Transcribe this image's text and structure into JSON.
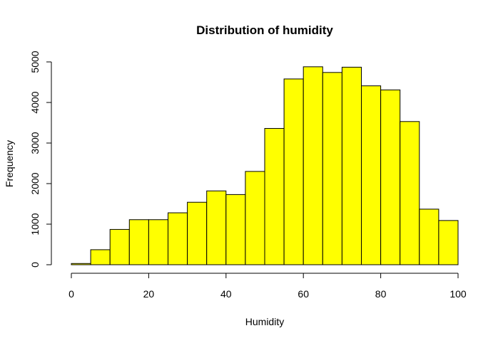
{
  "chart_data": {
    "type": "bar",
    "subtype": "histogram",
    "title": "Distribution of humidity",
    "xlabel": "Humidity",
    "ylabel": "Frequency",
    "bar_color": "#ffff00",
    "edge_color": "#000000",
    "bin_edges": [
      0,
      5,
      10,
      15,
      20,
      25,
      30,
      35,
      40,
      45,
      50,
      55,
      60,
      65,
      70,
      75,
      80,
      85,
      90,
      95,
      100
    ],
    "values": [
      30,
      370,
      870,
      1110,
      1110,
      1280,
      1540,
      1820,
      1730,
      2300,
      3360,
      4580,
      4880,
      4740,
      4870,
      4410,
      4310,
      3530,
      1370,
      1090
    ],
    "xlim": [
      0,
      100
    ],
    "ylim": [
      0,
      5000
    ],
    "xticks": [
      "0",
      "20",
      "40",
      "60",
      "80",
      "100"
    ],
    "yticks": [
      "0",
      "1000",
      "2000",
      "3000",
      "4000",
      "5000"
    ],
    "grid": false,
    "legend": "none"
  }
}
